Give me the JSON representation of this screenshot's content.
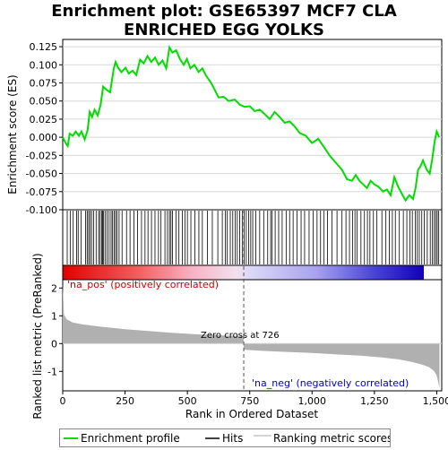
{
  "title_line1": "Enrichment plot: GSE65397 MCF7 CLA",
  "title_line2": "ENRICHED EGG YOLKS",
  "chart_data": {
    "type": "line",
    "x_label": "Rank in Ordered Dataset",
    "es_axis": {
      "label": "Enrichment score (ES)",
      "ylim": [
        -0.1,
        0.135
      ],
      "ticks": [
        "0.125",
        "0.100",
        "0.075",
        "0.050",
        "0.025",
        "0.000",
        "-0.025",
        "-0.050",
        "-0.075",
        "-0.100"
      ]
    },
    "metric_axis": {
      "label": "Ranked list metric (PreRanked)",
      "ylim": [
        -1.7,
        2.3
      ],
      "ticks": [
        "2",
        "1",
        "0",
        "-1"
      ]
    },
    "xlim": [
      0,
      1520
    ],
    "x_ticks": [
      "0",
      "250",
      "500",
      "750",
      "1,000",
      "1,250",
      "1,500"
    ],
    "n_genes": 1511,
    "zero_cross_rank": 726,
    "zero_cross_label": "Zero cross at 726",
    "pos_label": "'na_pos' (positively correlated)",
    "neg_label": "'na_neg' (negatively correlated)",
    "es_profile": [
      [
        0,
        0.0
      ],
      [
        12,
        -0.008
      ],
      [
        20,
        -0.012
      ],
      [
        28,
        0.005
      ],
      [
        40,
        0.002
      ],
      [
        52,
        0.008
      ],
      [
        65,
        0.002
      ],
      [
        75,
        0.008
      ],
      [
        88,
        -0.003
      ],
      [
        100,
        0.01
      ],
      [
        108,
        0.035
      ],
      [
        118,
        0.028
      ],
      [
        128,
        0.038
      ],
      [
        140,
        0.03
      ],
      [
        152,
        0.045
      ],
      [
        162,
        0.07
      ],
      [
        178,
        0.065
      ],
      [
        190,
        0.062
      ],
      [
        205,
        0.095
      ],
      [
        212,
        0.104
      ],
      [
        222,
        0.096
      ],
      [
        235,
        0.09
      ],
      [
        252,
        0.096
      ],
      [
        265,
        0.088
      ],
      [
        280,
        0.092
      ],
      [
        295,
        0.086
      ],
      [
        310,
        0.107
      ],
      [
        325,
        0.102
      ],
      [
        340,
        0.112
      ],
      [
        355,
        0.104
      ],
      [
        370,
        0.11
      ],
      [
        385,
        0.1
      ],
      [
        400,
        0.106
      ],
      [
        415,
        0.095
      ],
      [
        428,
        0.124
      ],
      [
        440,
        0.117
      ],
      [
        455,
        0.12
      ],
      [
        470,
        0.108
      ],
      [
        485,
        0.1
      ],
      [
        498,
        0.108
      ],
      [
        512,
        0.095
      ],
      [
        528,
        0.1
      ],
      [
        545,
        0.09
      ],
      [
        560,
        0.095
      ],
      [
        575,
        0.085
      ],
      [
        595,
        0.075
      ],
      [
        610,
        0.065
      ],
      [
        625,
        0.055
      ],
      [
        645,
        0.056
      ],
      [
        665,
        0.05
      ],
      [
        690,
        0.052
      ],
      [
        710,
        0.045
      ],
      [
        730,
        0.042
      ],
      [
        750,
        0.043
      ],
      [
        770,
        0.036
      ],
      [
        790,
        0.038
      ],
      [
        810,
        0.032
      ],
      [
        830,
        0.025
      ],
      [
        850,
        0.035
      ],
      [
        870,
        0.028
      ],
      [
        890,
        0.02
      ],
      [
        910,
        0.022
      ],
      [
        930,
        0.015
      ],
      [
        950,
        0.006
      ],
      [
        975,
        0.002
      ],
      [
        1000,
        -0.008
      ],
      [
        1025,
        -0.002
      ],
      [
        1045,
        -0.012
      ],
      [
        1070,
        -0.025
      ],
      [
        1095,
        -0.035
      ],
      [
        1120,
        -0.045
      ],
      [
        1140,
        -0.058
      ],
      [
        1160,
        -0.06
      ],
      [
        1175,
        -0.052
      ],
      [
        1190,
        -0.06
      ],
      [
        1205,
        -0.065
      ],
      [
        1220,
        -0.07
      ],
      [
        1235,
        -0.06
      ],
      [
        1250,
        -0.065
      ],
      [
        1265,
        -0.068
      ],
      [
        1285,
        -0.075
      ],
      [
        1300,
        -0.072
      ],
      [
        1315,
        -0.08
      ],
      [
        1330,
        -0.055
      ],
      [
        1345,
        -0.068
      ],
      [
        1360,
        -0.078
      ],
      [
        1375,
        -0.087
      ],
      [
        1390,
        -0.08
      ],
      [
        1405,
        -0.085
      ],
      [
        1415,
        -0.07
      ],
      [
        1425,
        -0.045
      ],
      [
        1435,
        -0.04
      ],
      [
        1445,
        -0.032
      ],
      [
        1460,
        -0.045
      ],
      [
        1472,
        -0.05
      ],
      [
        1482,
        -0.03
      ],
      [
        1492,
        -0.005
      ],
      [
        1500,
        0.008
      ],
      [
        1510,
        0.0
      ]
    ],
    "hit_ranks": [
      18,
      30,
      42,
      56,
      62,
      74,
      92,
      98,
      104,
      110,
      116,
      124,
      134,
      144,
      150,
      156,
      160,
      164,
      170,
      178,
      186,
      194,
      200,
      206,
      212,
      218,
      226,
      238,
      256,
      270,
      286,
      300,
      316,
      330,
      342,
      356,
      370,
      384,
      394,
      410,
      420,
      428,
      434,
      440,
      454,
      466,
      480,
      490,
      500,
      514,
      530,
      546,
      560,
      580,
      600,
      622,
      640,
      652,
      660,
      672,
      682,
      692,
      700,
      710,
      720,
      728,
      736,
      746,
      754,
      762,
      774,
      790,
      806,
      822,
      834,
      840,
      852,
      866,
      880,
      896,
      910,
      924,
      940,
      956,
      970,
      988,
      1004,
      1020,
      1034,
      1048,
      1062,
      1080,
      1100,
      1120,
      1136,
      1150,
      1162,
      1172,
      1180,
      1196,
      1210,
      1222,
      1232,
      1246,
      1260,
      1280,
      1296,
      1310,
      1322,
      1334,
      1350,
      1366,
      1380,
      1392,
      1402,
      1414,
      1422,
      1430,
      1440,
      1450,
      1462,
      1474,
      1482,
      1490,
      1496,
      1502,
      1508
    ],
    "metric_profile": [
      [
        0,
        2.15
      ],
      [
        5,
        1.05
      ],
      [
        15,
        0.88
      ],
      [
        40,
        0.76
      ],
      [
        80,
        0.69
      ],
      [
        150,
        0.61
      ],
      [
        250,
        0.52
      ],
      [
        350,
        0.45
      ],
      [
        450,
        0.38
      ],
      [
        550,
        0.33
      ],
      [
        650,
        0.29
      ],
      [
        725,
        0.27
      ],
      [
        726,
        -0.22
      ],
      [
        800,
        -0.26
      ],
      [
        900,
        -0.3
      ],
      [
        1000,
        -0.34
      ],
      [
        1100,
        -0.39
      ],
      [
        1200,
        -0.44
      ],
      [
        1280,
        -0.5
      ],
      [
        1350,
        -0.57
      ],
      [
        1400,
        -0.66
      ],
      [
        1440,
        -0.75
      ],
      [
        1470,
        -0.85
      ],
      [
        1490,
        -1.0
      ],
      [
        1500,
        -1.15
      ],
      [
        1505,
        -1.35
      ],
      [
        1511,
        -1.6
      ]
    ],
    "legend": [
      "Enrichment profile",
      "Hits",
      "Ranking metric scores"
    ],
    "colors": {
      "profile": "#00dd00",
      "hits": "#000000",
      "metric": "#b0b0b0",
      "pos": "#ee0000",
      "neg": "#0000cc",
      "axis": "#000000"
    }
  }
}
